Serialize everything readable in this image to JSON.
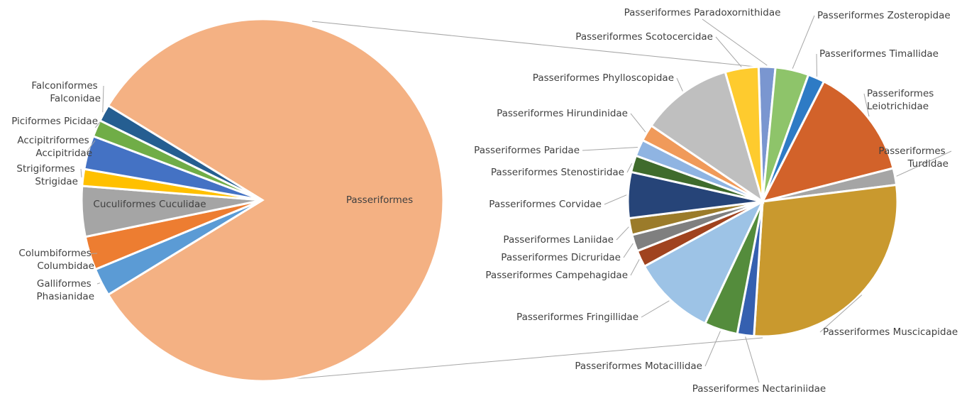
{
  "chart_data": [
    {
      "type": "pie",
      "categories": [
        "Passeriformes",
        "Galliformes Phasianidae",
        "Columbiformes Columbidae",
        "Cuculiformes Cuculidae",
        "Strigiformes Strigidae",
        "Accipitriformes Accipitridae",
        "Piciformes Picidae",
        "Falconiformes Falconidae"
      ],
      "values": [
        82.5,
        2.5,
        3,
        4.5,
        1.5,
        3,
        1.5,
        1.5
      ],
      "colors": [
        "#f4b183",
        "#5b9bd5",
        "#ed7d31",
        "#a5a5a5",
        "#ffc000",
        "#4472c4",
        "#70ad47",
        "#255e91"
      ]
    },
    {
      "type": "pie",
      "categories": [
        "Passeriformes Paradoxornithidae",
        "Passeriformes Zosteropidae",
        "Passeriformes Timallidae",
        "Passeriformes Leiotrichidae",
        "Passeriformes Turdidae",
        "Passeriformes Muscicapidae",
        "Passeriformes Nectariniidae",
        "Passeriformes Motacillidae",
        "Passeriformes Fringillidae",
        "Passeriformes Campehagidae",
        "Passeriformes Dicruridae",
        "Passeriformes Laniidae",
        "Passeriformes Corvidae",
        "Passeriformes Stenostiridae",
        "Passeriformes Paridae",
        "Passeriformes Hirundinidae",
        "Passeriformes Phylloscopidae",
        "Passeriformes Scotocercidae"
      ],
      "values": [
        2,
        4,
        2,
        13.5,
        2,
        28,
        2,
        4,
        10,
        2,
        2,
        2,
        5.5,
        2,
        2,
        2,
        11,
        4
      ],
      "colors": [
        "#7a96d0",
        "#8ec46a",
        "#2e7bc5",
        "#d2622a",
        "#a5a5a5",
        "#c9992e",
        "#3560b0",
        "#548c3c",
        "#9dc3e6",
        "#a0431f",
        "#7f7f7f",
        "#9b7b2a",
        "#264478",
        "#3f6b2c",
        "#8fb4e2",
        "#f09a5a",
        "#bfbfbf",
        "#fecb2e"
      ]
    }
  ]
}
